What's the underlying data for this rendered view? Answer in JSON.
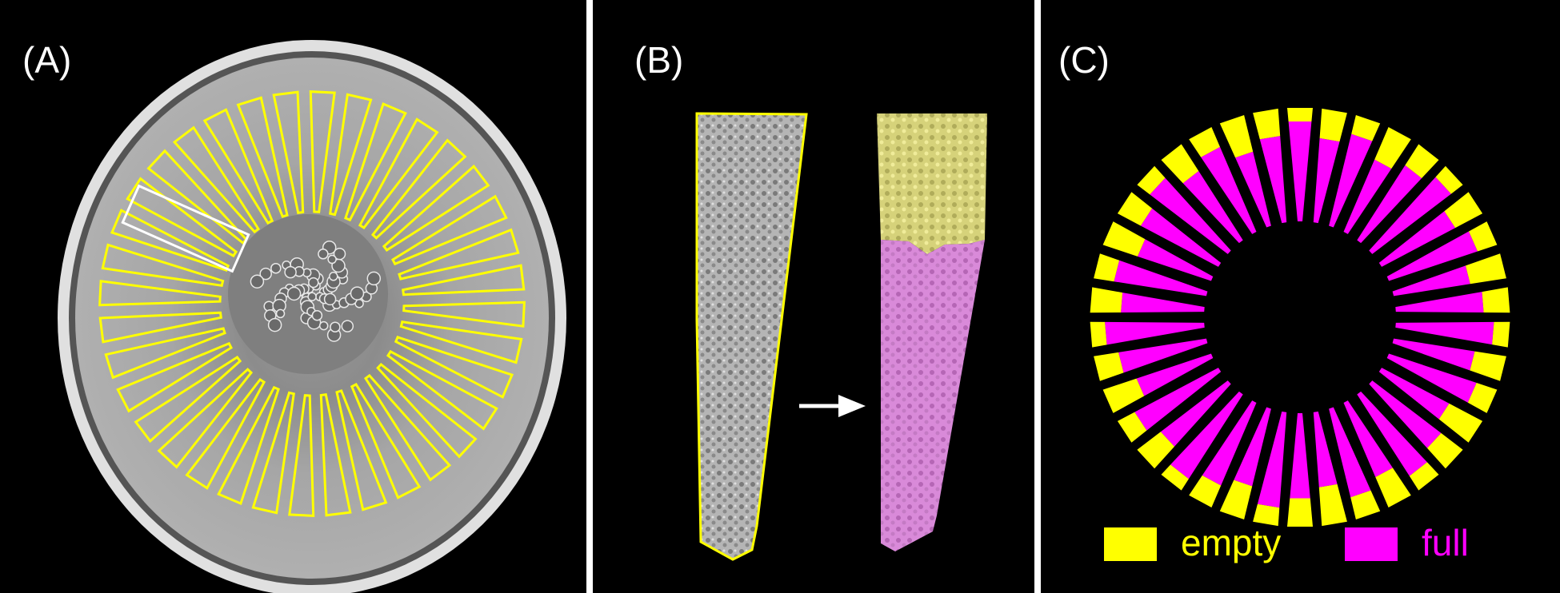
{
  "panels": {
    "a": {
      "label": "(A)"
    },
    "b": {
      "label": "(B)"
    },
    "c": {
      "label": "(C)"
    }
  },
  "legend": {
    "empty": {
      "label": "empty",
      "color": "#ffff00"
    },
    "full": {
      "label": "full",
      "color": "#ff00ff"
    }
  },
  "colors": {
    "outline": "#ffff00",
    "selection_box": "#ffffff",
    "background": "#000000"
  }
}
